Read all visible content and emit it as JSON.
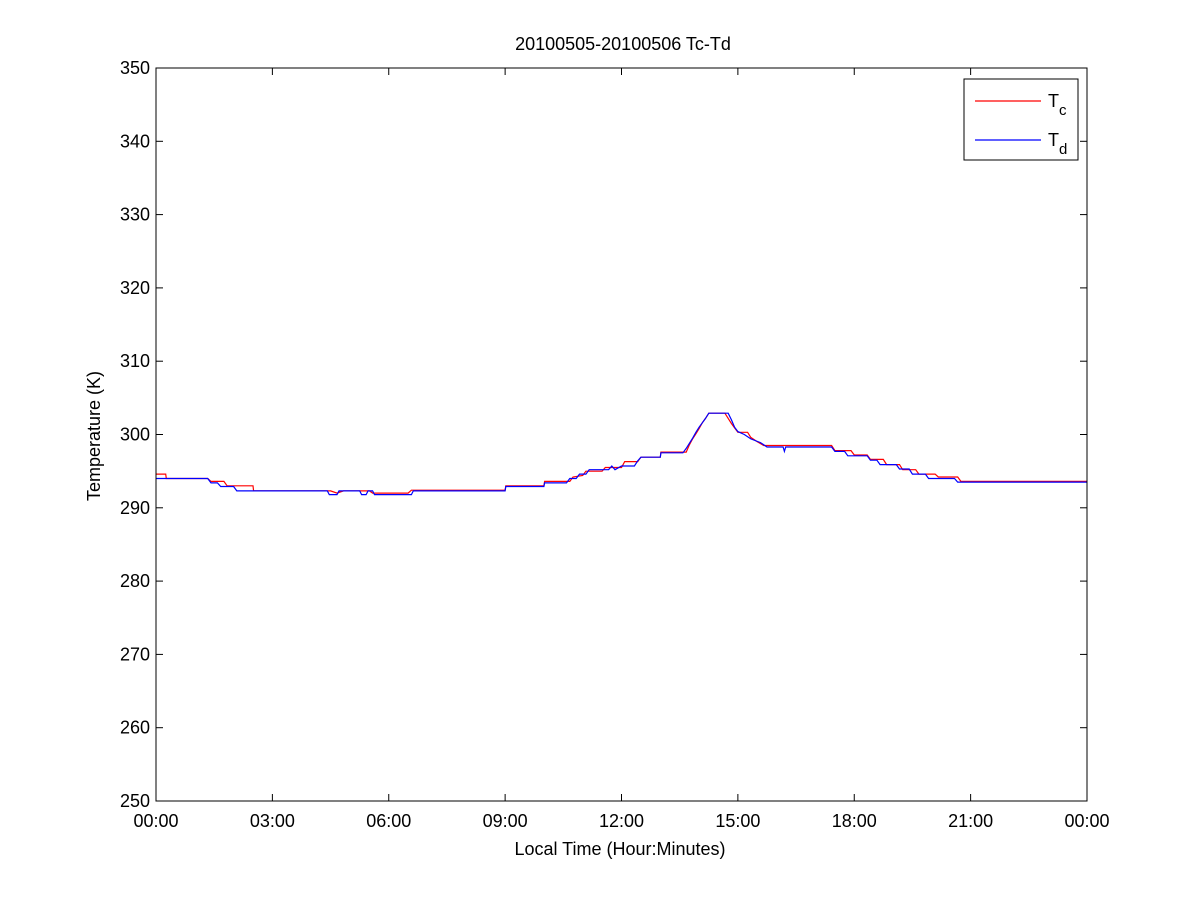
{
  "chart_data": {
    "type": "line",
    "title": "20100505-20100506 Tc-Td",
    "xlabel": "Local Time (Hour:Minutes)",
    "ylabel": "Temperature (K)",
    "xlim": [
      "00:00",
      "00:00 (+1 day)"
    ],
    "ylim": [
      250,
      350
    ],
    "x_ticks": [
      "00:00",
      "03:00",
      "06:00",
      "09:00",
      "12:00",
      "15:00",
      "18:00",
      "21:00",
      "00:00"
    ],
    "y_ticks": [
      250,
      260,
      270,
      280,
      290,
      300,
      310,
      320,
      330,
      340,
      350
    ],
    "grid": false,
    "legend_position": "top-right",
    "series": [
      {
        "name": "Tc",
        "base": "T",
        "sub": "c",
        "color": "#ff0000",
        "points": [
          [
            "00:00",
            294.6
          ],
          [
            "00:15",
            294.6
          ],
          [
            "00:16",
            294.0
          ],
          [
            "01:20",
            294.0
          ],
          [
            "01:25",
            293.6
          ],
          [
            "01:45",
            293.6
          ],
          [
            "01:50",
            293.0
          ],
          [
            "02:30",
            293.0
          ],
          [
            "02:31",
            292.3
          ],
          [
            "04:30",
            292.3
          ],
          [
            "04:40",
            292.0
          ],
          [
            "04:50",
            292.3
          ],
          [
            "05:30",
            292.3
          ],
          [
            "05:35",
            292.0
          ],
          [
            "06:00",
            292.0
          ],
          [
            "06:30",
            292.0
          ],
          [
            "06:35",
            292.4
          ],
          [
            "09:00",
            292.4
          ],
          [
            "09:01",
            293.0
          ],
          [
            "10:00",
            293.0
          ],
          [
            "10:01",
            293.6
          ],
          [
            "10:40",
            293.6
          ],
          [
            "10:45",
            294.2
          ],
          [
            "11:00",
            294.4
          ],
          [
            "11:05",
            295.0
          ],
          [
            "11:30",
            295.0
          ],
          [
            "11:35",
            295.5
          ],
          [
            "12:00",
            295.5
          ],
          [
            "12:05",
            296.3
          ],
          [
            "12:25",
            296.3
          ],
          [
            "12:30",
            296.9
          ],
          [
            "13:00",
            296.9
          ],
          [
            "13:01",
            297.6
          ],
          [
            "13:40",
            297.6
          ],
          [
            "13:45",
            298.6
          ],
          [
            "13:50",
            299.4
          ],
          [
            "13:55",
            300.1
          ],
          [
            "14:00",
            300.8
          ],
          [
            "14:05",
            301.6
          ],
          [
            "14:10",
            302.2
          ],
          [
            "14:15",
            302.9
          ],
          [
            "14:40",
            302.9
          ],
          [
            "14:45",
            302.2
          ],
          [
            "14:50",
            301.5
          ],
          [
            "14:55",
            300.9
          ],
          [
            "15:00",
            300.3
          ],
          [
            "15:15",
            300.3
          ],
          [
            "15:20",
            299.6
          ],
          [
            "15:30",
            299.0
          ],
          [
            "15:40",
            298.5
          ],
          [
            "17:25",
            298.5
          ],
          [
            "17:30",
            297.8
          ],
          [
            "17:55",
            297.8
          ],
          [
            "18:00",
            297.2
          ],
          [
            "18:20",
            297.2
          ],
          [
            "18:25",
            296.6
          ],
          [
            "18:45",
            296.6
          ],
          [
            "18:50",
            295.9
          ],
          [
            "19:10",
            295.9
          ],
          [
            "19:15",
            295.2
          ],
          [
            "19:35",
            295.2
          ],
          [
            "19:40",
            294.6
          ],
          [
            "20:05",
            294.6
          ],
          [
            "20:10",
            294.2
          ],
          [
            "20:40",
            294.2
          ],
          [
            "20:45",
            293.6
          ],
          [
            "24:00",
            293.6
          ]
        ]
      },
      {
        "name": "Td",
        "base": "T",
        "sub": "d",
        "color": "#0000ff",
        "points": [
          [
            "00:00",
            294.0
          ],
          [
            "01:20",
            294.0
          ],
          [
            "01:25",
            293.4
          ],
          [
            "01:35",
            293.4
          ],
          [
            "01:40",
            292.9
          ],
          [
            "02:00",
            292.9
          ],
          [
            "02:05",
            292.3
          ],
          [
            "04:25",
            292.3
          ],
          [
            "04:28",
            291.8
          ],
          [
            "04:40",
            291.8
          ],
          [
            "04:43",
            292.3
          ],
          [
            "05:15",
            292.3
          ],
          [
            "05:18",
            291.8
          ],
          [
            "05:25",
            291.8
          ],
          [
            "05:28",
            292.3
          ],
          [
            "05:35",
            292.3
          ],
          [
            "05:38",
            291.8
          ],
          [
            "06:35",
            291.8
          ],
          [
            "06:38",
            292.3
          ],
          [
            "09:00",
            292.3
          ],
          [
            "09:01",
            292.9
          ],
          [
            "10:00",
            292.9
          ],
          [
            "10:01",
            293.4
          ],
          [
            "10:35",
            293.4
          ],
          [
            "10:40",
            294.0
          ],
          [
            "10:50",
            294.0
          ],
          [
            "10:55",
            294.6
          ],
          [
            "11:05",
            294.6
          ],
          [
            "11:10",
            295.2
          ],
          [
            "11:40",
            295.2
          ],
          [
            "11:45",
            295.7
          ],
          [
            "11:50",
            295.2
          ],
          [
            "12:00",
            295.7
          ],
          [
            "12:20",
            295.7
          ],
          [
            "12:25",
            296.4
          ],
          [
            "12:30",
            296.9
          ],
          [
            "13:00",
            296.9
          ],
          [
            "13:01",
            297.5
          ],
          [
            "13:35",
            297.5
          ],
          [
            "13:40",
            298.1
          ],
          [
            "13:45",
            298.8
          ],
          [
            "13:50",
            299.5
          ],
          [
            "13:55",
            300.3
          ],
          [
            "14:00",
            301.0
          ],
          [
            "14:05",
            301.6
          ],
          [
            "14:10",
            302.2
          ],
          [
            "14:15",
            302.9
          ],
          [
            "14:45",
            302.9
          ],
          [
            "14:50",
            302.0
          ],
          [
            "14:55",
            301.0
          ],
          [
            "15:00",
            300.4
          ],
          [
            "15:10",
            300.0
          ],
          [
            "15:20",
            299.4
          ],
          [
            "15:35",
            298.9
          ],
          [
            "15:45",
            298.3
          ],
          [
            "16:10",
            298.3
          ],
          [
            "16:12",
            297.7
          ],
          [
            "16:14",
            298.3
          ],
          [
            "17:25",
            298.3
          ],
          [
            "17:30",
            297.7
          ],
          [
            "17:45",
            297.7
          ],
          [
            "17:50",
            297.1
          ],
          [
            "18:20",
            297.1
          ],
          [
            "18:25",
            296.5
          ],
          [
            "18:35",
            296.5
          ],
          [
            "18:40",
            295.9
          ],
          [
            "19:05",
            295.9
          ],
          [
            "19:10",
            295.3
          ],
          [
            "19:25",
            295.3
          ],
          [
            "19:30",
            294.6
          ],
          [
            "19:50",
            294.6
          ],
          [
            "19:55",
            294.0
          ],
          [
            "20:35",
            294.0
          ],
          [
            "20:40",
            293.5
          ],
          [
            "24:00",
            293.5
          ]
        ]
      }
    ]
  }
}
